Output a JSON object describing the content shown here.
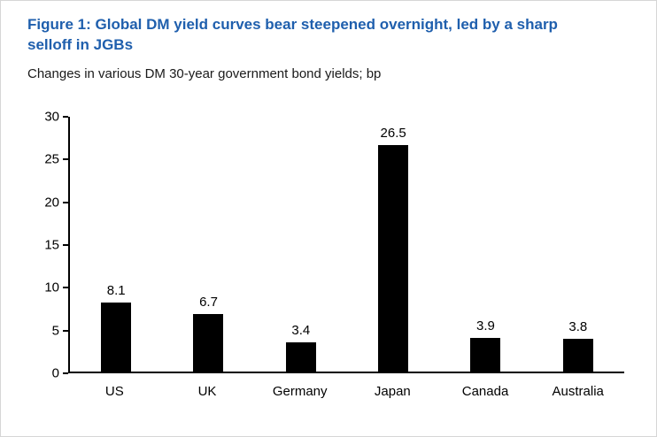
{
  "figure": {
    "title": "Figure 1: Global DM yield curves bear steepened overnight, led by a sharp selloff in JGBs",
    "subtitle": "Changes in various DM 30-year government bond yields; bp"
  },
  "chart_data": {
    "type": "bar",
    "categories": [
      "US",
      "UK",
      "Germany",
      "Japan",
      "Canada",
      "Australia"
    ],
    "values": [
      8.1,
      6.7,
      3.4,
      26.5,
      3.9,
      3.8
    ],
    "title": "Figure 1: Global DM yield curves bear steepened overnight, led by a sharp selloff in JGBs",
    "subtitle": "Changes in various DM 30-year government bond yields; bp",
    "xlabel": "",
    "ylabel": "",
    "ylim": [
      0,
      30
    ],
    "ytick_step": 5,
    "yticks": [
      0,
      5,
      10,
      15,
      20,
      25,
      30
    ],
    "grid": false,
    "legend": false,
    "data_labels": true,
    "bar_color": "#000000"
  },
  "colors": {
    "title_blue": "#1f5fad",
    "bar_black": "#000000",
    "background": "#ffffff"
  }
}
